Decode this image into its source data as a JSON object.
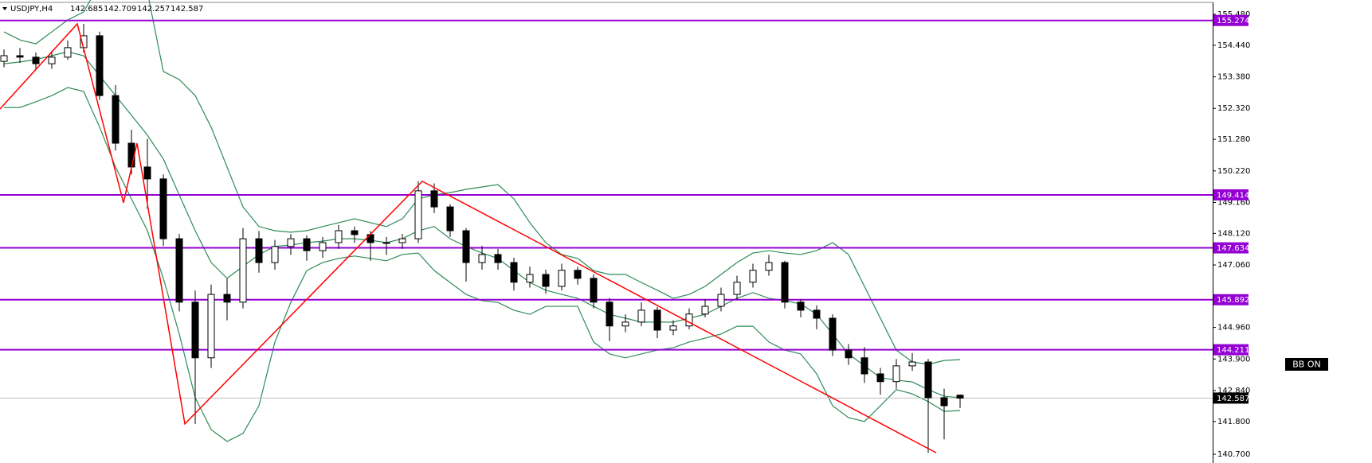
{
  "chart_data": {
    "type": "candlestick",
    "symbol": "USDJPY,H4",
    "open": [
      153.9,
      154.09,
      154.04,
      153.82,
      154.04,
      154.36,
      154.76,
      152.75,
      151.15,
      150.35,
      149.95,
      147.94,
      145.81,
      143.94,
      146.07,
      145.81,
      147.94,
      147.14,
      147.68,
      147.94,
      147.54,
      147.81,
      148.21,
      148.08,
      147.81,
      147.81,
      147.94,
      149.55,
      149.01,
      148.21,
      147.14,
      147.41,
      147.14,
      146.48,
      146.74,
      146.34,
      146.88,
      146.61,
      145.81,
      145.01,
      145.14,
      145.54,
      144.87,
      145.01,
      145.41,
      145.67,
      146.07,
      146.48,
      146.88,
      147.14,
      145.81,
      145.54,
      145.27,
      144.2,
      143.94,
      143.4,
      143.14,
      143.67,
      143.8,
      142.6,
      142.685
    ],
    "high": [
      154.3,
      154.35,
      154.2,
      154.25,
      154.6,
      155.16,
      154.9,
      153.1,
      151.6,
      151.3,
      150.1,
      148.1,
      146.2,
      146.4,
      146.6,
      148.3,
      148.2,
      147.9,
      148.1,
      148.05,
      148.0,
      148.4,
      148.35,
      148.2,
      148.0,
      148.1,
      149.87,
      149.8,
      149.1,
      148.3,
      147.7,
      147.6,
      147.3,
      147.0,
      146.9,
      147.1,
      147.0,
      146.75,
      145.95,
      145.4,
      145.8,
      145.65,
      145.2,
      145.6,
      145.9,
      146.3,
      146.7,
      147.1,
      147.4,
      147.2,
      145.9,
      145.7,
      145.4,
      144.4,
      144.3,
      143.6,
      143.9,
      144.1,
      143.9,
      142.9,
      142.709
    ],
    "low": [
      153.7,
      153.85,
      153.6,
      153.65,
      153.95,
      154.2,
      152.6,
      150.9,
      150.1,
      148.95,
      147.7,
      145.5,
      141.72,
      143.6,
      145.2,
      145.6,
      146.8,
      146.9,
      147.4,
      147.2,
      147.3,
      147.6,
      147.8,
      147.2,
      147.4,
      147.6,
      147.8,
      148.8,
      148.0,
      146.5,
      146.9,
      146.9,
      146.2,
      146.3,
      146.1,
      146.2,
      146.4,
      145.6,
      144.5,
      144.8,
      145.0,
      144.6,
      144.7,
      144.9,
      145.3,
      145.5,
      145.9,
      146.3,
      146.7,
      145.6,
      145.3,
      144.9,
      144.0,
      143.7,
      143.1,
      142.7,
      142.9,
      143.5,
      140.75,
      141.2,
      142.257
    ],
    "close": [
      154.09,
      154.04,
      153.82,
      154.04,
      154.36,
      154.76,
      152.75,
      151.15,
      150.35,
      149.95,
      147.94,
      145.81,
      143.94,
      146.07,
      145.81,
      147.94,
      147.14,
      147.68,
      147.94,
      147.54,
      147.81,
      148.21,
      148.08,
      147.81,
      147.81,
      147.94,
      149.55,
      149.01,
      148.21,
      147.14,
      147.41,
      147.14,
      146.48,
      146.74,
      146.34,
      146.88,
      146.61,
      145.81,
      145.01,
      145.14,
      145.54,
      144.87,
      145.01,
      145.41,
      145.67,
      146.07,
      146.48,
      146.88,
      147.14,
      145.81,
      145.54,
      145.27,
      144.2,
      143.94,
      143.4,
      143.14,
      143.67,
      143.8,
      142.6,
      142.33,
      142.587
    ],
    "up_color": "#ffffff",
    "down_color": "#000000",
    "ylim": [
      140.406,
      155.961
    ],
    "yticks": [
      {
        "value": 155.48,
        "label": "155.480"
      },
      {
        "value": 154.44,
        "label": "154.440"
      },
      {
        "value": 153.38,
        "label": "153.380"
      },
      {
        "value": 152.32,
        "label": "152.320"
      },
      {
        "value": 151.28,
        "label": "151.280"
      },
      {
        "value": 150.22,
        "label": "150.220"
      },
      {
        "value": 149.16,
        "label": "149.160"
      },
      {
        "value": 148.12,
        "label": "148.120"
      },
      {
        "value": 147.06,
        "label": "147.060"
      },
      {
        "value": 144.96,
        "label": "144.960"
      },
      {
        "value": 143.9,
        "label": "143.900"
      },
      {
        "value": 142.84,
        "label": "142.840"
      },
      {
        "value": 141.8,
        "label": "141.800"
      },
      {
        "value": 140.7,
        "label": "140.700"
      }
    ],
    "bands": {
      "color": "#2e8b57",
      "upper": [
        154.89,
        154.62,
        154.49,
        154.89,
        155.29,
        155.56,
        156.5,
        157.03,
        156.76,
        156.23,
        153.56,
        153.29,
        152.75,
        151.69,
        150.35,
        149.01,
        148.35,
        148.21,
        148.16,
        148.21,
        148.35,
        148.48,
        148.61,
        148.48,
        148.35,
        148.61,
        149.28,
        149.41,
        149.49,
        149.6,
        149.68,
        149.76,
        149.28,
        148.48,
        147.81,
        147.41,
        147.28,
        146.87,
        146.74,
        146.74,
        146.47,
        146.21,
        145.94,
        146.07,
        146.34,
        146.74,
        147.14,
        147.46,
        147.54,
        147.46,
        147.41,
        147.54,
        147.81,
        147.41,
        146.34,
        145.27,
        144.2,
        143.8,
        143.72,
        143.85,
        143.88
      ],
      "middle": [
        153.82,
        153.88,
        153.96,
        154.09,
        154.22,
        154.09,
        153.42,
        152.75,
        152.09,
        151.42,
        150.62,
        149.41,
        148.21,
        147.14,
        146.61,
        147.01,
        147.41,
        147.68,
        147.73,
        147.81,
        147.86,
        147.94,
        147.94,
        147.89,
        147.81,
        147.94,
        148.21,
        148.35,
        147.94,
        147.68,
        147.46,
        147.28,
        146.87,
        146.47,
        146.21,
        146.07,
        145.94,
        145.67,
        145.4,
        145.27,
        145.14,
        145.14,
        145.14,
        145.27,
        145.4,
        145.67,
        145.94,
        146.13,
        145.94,
        145.86,
        145.75,
        145.4,
        144.74,
        144.07,
        143.67,
        143.27,
        143.19,
        143.13,
        142.87,
        142.65,
        142.6
      ],
      "lower": [
        152.35,
        152.35,
        152.54,
        152.75,
        153.02,
        152.89,
        151.69,
        150.35,
        149.28,
        148.21,
        146.61,
        144.74,
        142.6,
        141.53,
        141.13,
        141.4,
        142.33,
        144.47,
        145.8,
        146.87,
        147.14,
        147.28,
        147.36,
        147.28,
        147.2,
        147.41,
        147.46,
        146.87,
        146.47,
        146.07,
        145.86,
        145.8,
        145.54,
        145.4,
        145.67,
        145.67,
        145.67,
        144.47,
        144.07,
        143.94,
        144.07,
        144.2,
        144.28,
        144.47,
        144.6,
        144.74,
        145.0,
        145.0,
        144.47,
        144.2,
        144.07,
        143.4,
        142.33,
        141.93,
        141.8,
        142.33,
        142.87,
        142.73,
        142.47,
        142.14,
        142.17
      ]
    },
    "levels": {
      "color": "#9400d3",
      "values": [
        155.274,
        149.414,
        147.634,
        145.892,
        144.211
      ]
    },
    "zigzag": {
      "color": "#ff0000",
      "x": [
        -0.25,
        4.6,
        7.5,
        8.35,
        11.35,
        26.25,
        58.5
      ],
      "values": [
        152.3,
        155.16,
        149.15,
        151.15,
        141.72,
        149.87,
        140.75
      ]
    },
    "indicator_label": "BB ON"
  }
}
